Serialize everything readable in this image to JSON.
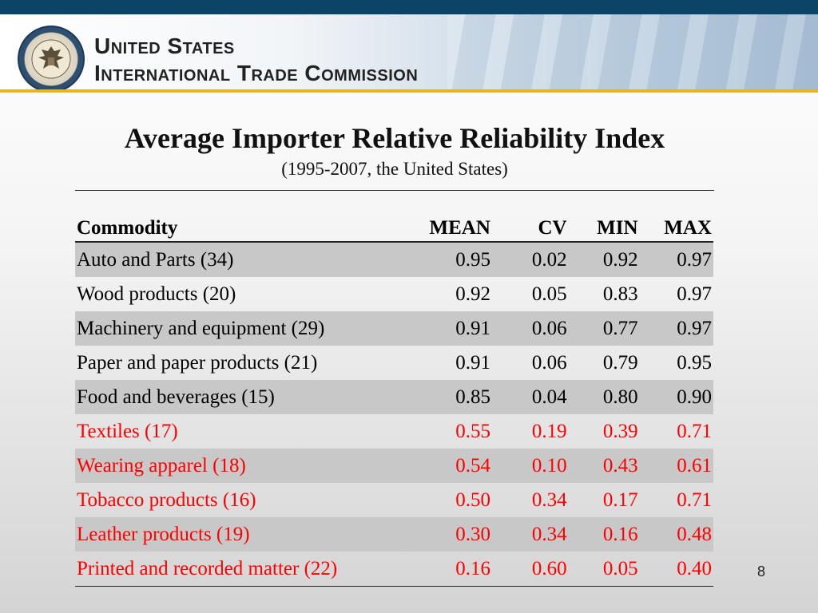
{
  "header": {
    "org_line1": "United States",
    "org_line2": "International Trade Commission"
  },
  "title": "Average Importer Relative Reliability Index",
  "subtitle": "(1995-2007, the United States)",
  "table": {
    "columns": [
      "Commodity",
      "MEAN",
      "CV",
      "MIN",
      "MAX"
    ],
    "rows": [
      {
        "cells": [
          "Auto and Parts (34)",
          "0.95",
          "0.02",
          "0.92",
          "0.97"
        ],
        "shaded": true,
        "highlight": false
      },
      {
        "cells": [
          "Wood products (20)",
          "0.92",
          "0.05",
          "0.83",
          "0.97"
        ],
        "shaded": false,
        "highlight": false
      },
      {
        "cells": [
          "Machinery and equipment (29)",
          "0.91",
          "0.06",
          "0.77",
          "0.97"
        ],
        "shaded": true,
        "highlight": false
      },
      {
        "cells": [
          "Paper and paper products (21)",
          "0.91",
          "0.06",
          "0.79",
          "0.95"
        ],
        "shaded": false,
        "highlight": false
      },
      {
        "cells": [
          "Food and beverages (15)",
          "0.85",
          "0.04",
          "0.80",
          "0.90"
        ],
        "shaded": true,
        "highlight": false
      },
      {
        "cells": [
          "Textiles (17)",
          "0.55",
          "0.19",
          "0.39",
          "0.71"
        ],
        "shaded": false,
        "highlight": true
      },
      {
        "cells": [
          "Wearing apparel (18)",
          "0.54",
          "0.10",
          "0.43",
          "0.61"
        ],
        "shaded": true,
        "highlight": true
      },
      {
        "cells": [
          "Tobacco products (16)",
          "0.50",
          "0.34",
          "0.17",
          "0.71"
        ],
        "shaded": false,
        "highlight": true
      },
      {
        "cells": [
          "Leather products (19)",
          "0.30",
          "0.34",
          "0.16",
          "0.48"
        ],
        "shaded": true,
        "highlight": true
      },
      {
        "cells": [
          "Printed and recorded matter (22)",
          "0.16",
          "0.60",
          "0.05",
          "0.40"
        ],
        "shaded": false,
        "highlight": true
      }
    ]
  },
  "page_number": "8",
  "colors": {
    "highlight_text": "#ff0000",
    "row_shade": "#c8c8c8",
    "header_bar": "#0b4466",
    "gold_rule": "#e6b422"
  },
  "icons": {
    "seal": "eagle-seal-icon"
  }
}
